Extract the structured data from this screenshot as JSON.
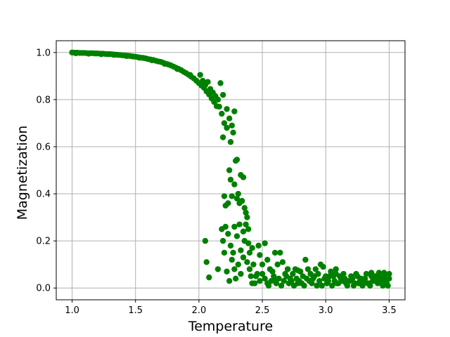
{
  "chart_data": {
    "type": "scatter",
    "xlabel": "Temperature",
    "ylabel": "Magnetization",
    "xlim": [
      0.875,
      3.625
    ],
    "ylim": [
      -0.05,
      1.05
    ],
    "grid": true,
    "marker_color": "#008000",
    "x_ticks": [
      {
        "value": 1.0,
        "label": "1.0"
      },
      {
        "value": 1.5,
        "label": "1.5"
      },
      {
        "value": 2.0,
        "label": "2.0"
      },
      {
        "value": 2.5,
        "label": "2.5"
      },
      {
        "value": 3.0,
        "label": "3.0"
      },
      {
        "value": 3.5,
        "label": "3.5"
      }
    ],
    "y_ticks": [
      {
        "value": 0.0,
        "label": "0.0"
      },
      {
        "value": 0.2,
        "label": "0.2"
      },
      {
        "value": 0.4,
        "label": "0.4"
      },
      {
        "value": 0.6,
        "label": "0.6"
      },
      {
        "value": 0.8,
        "label": "0.8"
      },
      {
        "value": 1.0,
        "label": "1.0"
      }
    ],
    "points": [
      [
        1.0,
        1.0
      ],
      [
        1.02,
        0.999
      ],
      [
        1.04,
        0.999
      ],
      [
        1.06,
        0.998
      ],
      [
        1.08,
        0.998
      ],
      [
        1.1,
        0.998
      ],
      [
        1.12,
        0.997
      ],
      [
        1.14,
        0.997
      ],
      [
        1.16,
        0.997
      ],
      [
        1.18,
        0.996
      ],
      [
        1.2,
        0.996
      ],
      [
        1.22,
        0.995
      ],
      [
        1.24,
        0.995
      ],
      [
        1.26,
        0.994
      ],
      [
        1.28,
        0.993
      ],
      [
        1.3,
        0.993
      ],
      [
        1.32,
        0.992
      ],
      [
        1.34,
        0.991
      ],
      [
        1.36,
        0.99
      ],
      [
        1.38,
        0.989
      ],
      [
        1.4,
        0.988
      ],
      [
        1.42,
        0.987
      ],
      [
        1.44,
        0.986
      ],
      [
        1.46,
        0.985
      ],
      [
        1.48,
        0.983
      ],
      [
        1.5,
        0.982
      ],
      [
        1.52,
        0.98
      ],
      [
        1.54,
        0.978
      ],
      [
        1.56,
        0.977
      ],
      [
        1.58,
        0.975
      ],
      [
        1.6,
        0.972
      ],
      [
        1.62,
        0.97
      ],
      [
        1.64,
        0.968
      ],
      [
        1.66,
        0.965
      ],
      [
        1.68,
        0.962
      ],
      [
        1.7,
        0.96
      ],
      [
        1.72,
        0.956
      ],
      [
        1.74,
        0.952
      ],
      [
        1.76,
        0.949
      ],
      [
        1.78,
        0.945
      ],
      [
        1.8,
        0.94
      ],
      [
        1.82,
        0.935
      ],
      [
        1.84,
        0.93
      ],
      [
        1.86,
        0.925
      ],
      [
        1.88,
        0.918
      ],
      [
        1.9,
        0.912
      ],
      [
        1.92,
        0.905
      ],
      [
        1.94,
        0.897
      ],
      [
        1.96,
        0.89
      ],
      [
        1.98,
        0.88
      ],
      [
        2.0,
        0.87
      ],
      [
        2.02,
        0.86
      ],
      [
        2.04,
        0.85
      ],
      [
        2.06,
        0.835
      ],
      [
        2.08,
        0.822
      ],
      [
        2.1,
        0.805
      ],
      [
        2.12,
        0.79
      ],
      [
        2.14,
        0.772
      ],
      [
        1.03,
        0.997
      ],
      [
        1.13,
        0.995
      ],
      [
        1.23,
        0.993
      ],
      [
        1.33,
        0.99
      ],
      [
        1.43,
        0.985
      ],
      [
        1.53,
        0.978
      ],
      [
        1.63,
        0.967
      ],
      [
        1.73,
        0.952
      ],
      [
        1.83,
        0.93
      ],
      [
        1.93,
        0.905
      ],
      [
        2.01,
        0.905
      ],
      [
        2.03,
        0.88
      ],
      [
        2.05,
        0.862
      ],
      [
        2.07,
        0.875
      ],
      [
        2.09,
        0.845
      ],
      [
        2.11,
        0.83
      ],
      [
        2.13,
        0.815
      ],
      [
        2.15,
        0.8
      ],
      [
        2.17,
        0.87
      ],
      [
        2.19,
        0.82
      ],
      [
        2.16,
        0.77
      ],
      [
        2.18,
        0.74
      ],
      [
        2.2,
        0.7
      ],
      [
        2.22,
        0.68
      ],
      [
        2.24,
        0.72
      ],
      [
        2.26,
        0.69
      ],
      [
        2.28,
        0.75
      ],
      [
        2.25,
        0.62
      ],
      [
        2.19,
        0.64
      ],
      [
        2.22,
        0.76
      ],
      [
        2.27,
        0.66
      ],
      [
        2.29,
        0.54
      ],
      [
        2.3,
        0.545
      ],
      [
        2.33,
        0.48
      ],
      [
        2.35,
        0.47
      ],
      [
        2.24,
        0.5
      ],
      [
        2.28,
        0.44
      ],
      [
        2.31,
        0.4
      ],
      [
        2.36,
        0.34
      ],
      [
        2.38,
        0.3
      ],
      [
        2.39,
        0.25
      ],
      [
        2.2,
        0.39
      ],
      [
        2.21,
        0.35
      ],
      [
        2.25,
        0.46
      ],
      [
        2.26,
        0.39
      ],
      [
        2.3,
        0.38
      ],
      [
        2.32,
        0.36
      ],
      [
        2.34,
        0.37
      ],
      [
        2.37,
        0.32
      ],
      [
        2.23,
        0.36
      ],
      [
        2.05,
        0.2
      ],
      [
        2.06,
        0.11
      ],
      [
        2.08,
        0.045
      ],
      [
        2.15,
        0.08
      ],
      [
        2.18,
        0.25
      ],
      [
        2.19,
        0.2
      ],
      [
        2.21,
        0.26
      ],
      [
        2.23,
        0.23
      ],
      [
        2.25,
        0.18
      ],
      [
        2.27,
        0.15
      ],
      [
        2.28,
        0.26
      ],
      [
        2.3,
        0.22
      ],
      [
        2.32,
        0.27
      ],
      [
        2.33,
        0.16
      ],
      [
        2.35,
        0.24
      ],
      [
        2.36,
        0.2
      ],
      [
        2.37,
        0.27
      ],
      [
        2.39,
        0.19
      ],
      [
        2.4,
        0.15
      ],
      [
        2.42,
        0.17
      ],
      [
        2.2,
        0.15
      ],
      [
        2.22,
        0.07
      ],
      [
        2.24,
        0.03
      ],
      [
        2.26,
        0.12
      ],
      [
        2.28,
        0.08
      ],
      [
        2.29,
        0.04
      ],
      [
        2.31,
        0.1
      ],
      [
        2.33,
        0.06
      ],
      [
        2.35,
        0.13
      ],
      [
        2.38,
        0.11
      ],
      [
        2.4,
        0.08
      ],
      [
        2.41,
        0.05
      ],
      [
        2.43,
        0.1
      ],
      [
        2.44,
        0.02
      ],
      [
        2.46,
        0.06
      ],
      [
        2.47,
        0.18
      ],
      [
        2.48,
        0.14
      ],
      [
        2.5,
        0.1
      ],
      [
        2.52,
        0.19
      ],
      [
        2.54,
        0.12
      ],
      [
        2.42,
        0.02
      ],
      [
        2.45,
        0.05
      ],
      [
        2.48,
        0.03
      ],
      [
        2.5,
        0.06
      ],
      [
        2.52,
        0.04
      ],
      [
        2.54,
        0.02
      ],
      [
        2.56,
        0.08
      ],
      [
        2.58,
        0.07
      ],
      [
        2.6,
        0.03
      ],
      [
        2.62,
        0.1
      ],
      [
        2.64,
        0.15
      ],
      [
        2.66,
        0.11
      ],
      [
        2.68,
        0.06
      ],
      [
        2.7,
        0.08
      ],
      [
        2.72,
        0.04
      ],
      [
        2.74,
        0.06
      ],
      [
        2.76,
        0.08
      ],
      [
        2.78,
        0.02
      ],
      [
        2.8,
        0.07
      ],
      [
        2.82,
        0.05
      ],
      [
        2.55,
        0.01
      ],
      [
        2.57,
        0.03
      ],
      [
        2.59,
        0.05
      ],
      [
        2.61,
        0.02
      ],
      [
        2.63,
        0.04
      ],
      [
        2.65,
        0.01
      ],
      [
        2.67,
        0.03
      ],
      [
        2.69,
        0.05
      ],
      [
        2.71,
        0.02
      ],
      [
        2.73,
        0.03
      ],
      [
        2.75,
        0.01
      ],
      [
        2.77,
        0.04
      ],
      [
        2.79,
        0.03
      ],
      [
        2.81,
        0.02
      ],
      [
        2.83,
        0.01
      ],
      [
        2.85,
        0.04
      ],
      [
        2.87,
        0.03
      ],
      [
        2.89,
        0.02
      ],
      [
        2.91,
        0.05
      ],
      [
        2.93,
        0.01
      ],
      [
        2.84,
        0.12
      ],
      [
        2.86,
        0.08
      ],
      [
        2.88,
        0.06
      ],
      [
        2.9,
        0.04
      ],
      [
        2.92,
        0.08
      ],
      [
        2.94,
        0.06
      ],
      [
        2.96,
        0.1
      ],
      [
        2.98,
        0.09
      ],
      [
        3.0,
        0.05
      ],
      [
        3.02,
        0.03
      ],
      [
        3.04,
        0.07
      ],
      [
        3.06,
        0.05
      ],
      [
        3.08,
        0.08
      ],
      [
        3.1,
        0.02
      ],
      [
        3.12,
        0.04
      ],
      [
        3.14,
        0.06
      ],
      [
        3.16,
        0.02
      ],
      [
        3.18,
        0.03
      ],
      [
        3.2,
        0.05
      ],
      [
        3.22,
        0.01
      ],
      [
        2.95,
        0.03
      ],
      [
        2.97,
        0.01
      ],
      [
        2.99,
        0.04
      ],
      [
        3.01,
        0.02
      ],
      [
        3.03,
        0.05
      ],
      [
        3.05,
        0.01
      ],
      [
        3.07,
        0.03
      ],
      [
        3.09,
        0.02
      ],
      [
        3.11,
        0.05
      ],
      [
        3.13,
        0.03
      ],
      [
        3.15,
        0.04
      ],
      [
        3.17,
        0.01
      ],
      [
        3.19,
        0.03
      ],
      [
        3.21,
        0.04
      ],
      [
        3.23,
        0.02
      ],
      [
        3.25,
        0.05
      ],
      [
        3.27,
        0.03
      ],
      [
        3.29,
        0.01
      ],
      [
        3.31,
        0.04
      ],
      [
        3.33,
        0.02
      ],
      [
        3.24,
        0.06
      ],
      [
        3.26,
        0.02
      ],
      [
        3.28,
        0.04
      ],
      [
        3.3,
        0.03
      ],
      [
        3.32,
        0.06
      ],
      [
        3.34,
        0.02
      ],
      [
        3.36,
        0.05
      ],
      [
        3.38,
        0.03
      ],
      [
        3.4,
        0.04
      ],
      [
        3.42,
        0.06
      ],
      [
        3.44,
        0.03
      ],
      [
        3.46,
        0.05
      ],
      [
        3.48,
        0.02
      ],
      [
        3.5,
        0.06
      ],
      [
        3.35,
        0.01
      ],
      [
        3.37,
        0.03
      ],
      [
        3.39,
        0.05
      ],
      [
        3.41,
        0.02
      ],
      [
        3.43,
        0.04
      ],
      [
        3.45,
        0.01
      ],
      [
        3.47,
        0.03
      ],
      [
        3.49,
        0.01
      ],
      [
        3.5,
        0.04
      ],
      [
        3.36,
        0.065
      ],
      [
        3.42,
        0.065
      ],
      [
        3.46,
        0.065
      ],
      [
        2.6,
        0.15
      ],
      [
        2.7,
        0.08
      ],
      [
        2.78,
        0.075
      ],
      [
        3.08,
        0.06
      ]
    ]
  }
}
